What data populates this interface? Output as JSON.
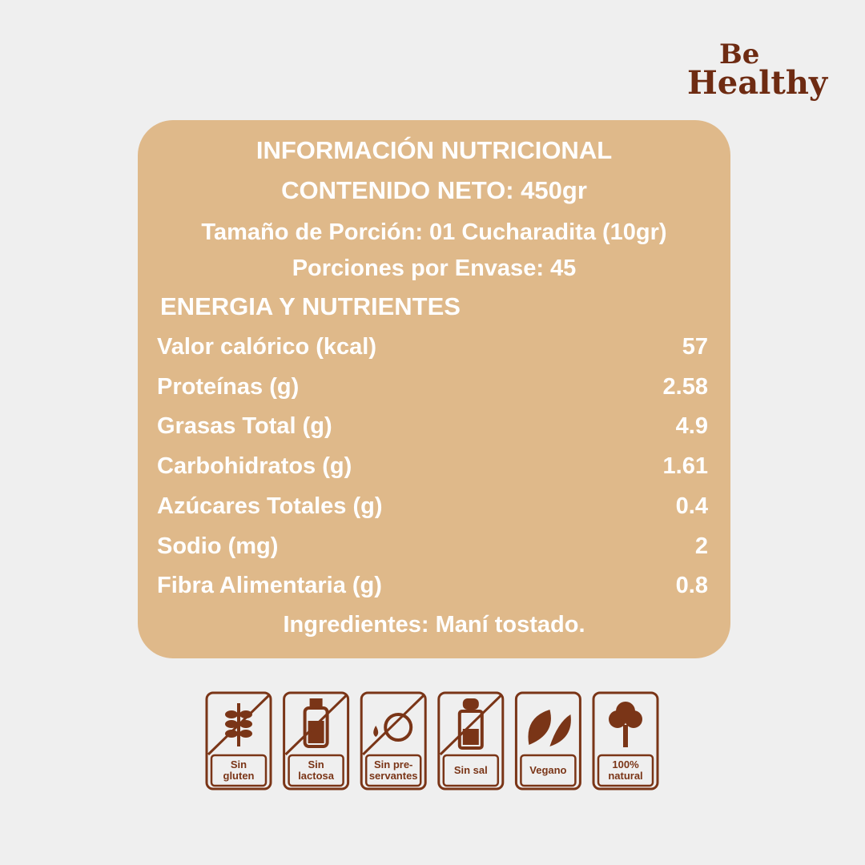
{
  "brand": {
    "line1": "Be",
    "line2": "Healthy"
  },
  "panel": {
    "title": "INFORMACIÓN NUTRICIONAL",
    "net_content": "CONTENIDO NETO: 450gr",
    "serving_size": "Tamaño de Porción: 01 Cucharadita (10gr)",
    "servings": "Porciones por Envase: 45",
    "section": "ENERGIA Y NUTRIENTES",
    "rows": [
      {
        "label": "Valor calórico (kcal)",
        "value": "57"
      },
      {
        "label": "Proteínas (g)",
        "value": "2.58"
      },
      {
        "label": "Grasas Total (g)",
        "value": "4.9"
      },
      {
        "label": "Carbohidratos (g)",
        "value": "1.61"
      },
      {
        "label": "Azúcares Totales (g)",
        "value": "0.4"
      },
      {
        "label": "Sodio (mg)",
        "value": "2"
      },
      {
        "label": "Fibra Alimentaria (g)",
        "value": "0.8"
      }
    ],
    "ingredients": "Ingredientes: Maní tostado."
  },
  "badges": [
    {
      "lines": [
        "Sin",
        "gluten"
      ]
    },
    {
      "lines": [
        "Sin",
        "lactosa"
      ]
    },
    {
      "lines": [
        "Sin pre-",
        "servantes"
      ]
    },
    {
      "lines": [
        "Sin sal"
      ]
    },
    {
      "lines": [
        "Vegano"
      ]
    },
    {
      "lines": [
        "100%",
        "natural"
      ]
    }
  ]
}
